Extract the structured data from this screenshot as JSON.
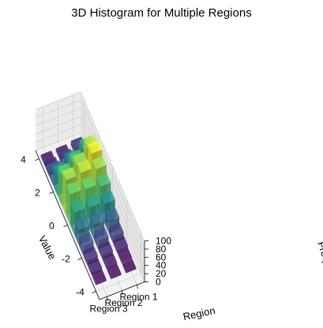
{
  "chart_data": {
    "type": "3d-bar-histogram",
    "title": "3D Histogram for Multiple Regions",
    "xlabel": "Value",
    "ylabel": "Region",
    "zlabel": "Frequency",
    "x_ticks": [
      "-4",
      "-2",
      "0",
      "2",
      "4"
    ],
    "y_ticks": [
      "Region 1",
      "Region 2",
      "Region 3"
    ],
    "z_ticks": [
      "0",
      "20",
      "40",
      "60",
      "80",
      "100"
    ],
    "zlim": [
      0,
      100
    ],
    "bin_centers": [
      -3.4,
      -2.8,
      -2.2,
      -1.6,
      -1.0,
      -0.4,
      0.2,
      0.8,
      1.4,
      2.0,
      2.6,
      3.2,
      3.8
    ],
    "series": [
      {
        "name": "Region 1",
        "values": [
          2,
          4,
          10,
          18,
          30,
          48,
          66,
          84,
          98,
          88,
          60,
          30,
          10
        ]
      },
      {
        "name": "Region 2",
        "values": [
          3,
          6,
          12,
          22,
          36,
          54,
          74,
          90,
          84,
          66,
          42,
          20,
          6
        ]
      },
      {
        "name": "Region 3",
        "values": [
          4,
          8,
          14,
          24,
          38,
          56,
          76,
          86,
          72,
          50,
          30,
          14,
          5
        ]
      }
    ],
    "colormap": [
      "#440154",
      "#3b528b",
      "#21918c",
      "#5ec962",
      "#fde725"
    ],
    "grid": true
  }
}
